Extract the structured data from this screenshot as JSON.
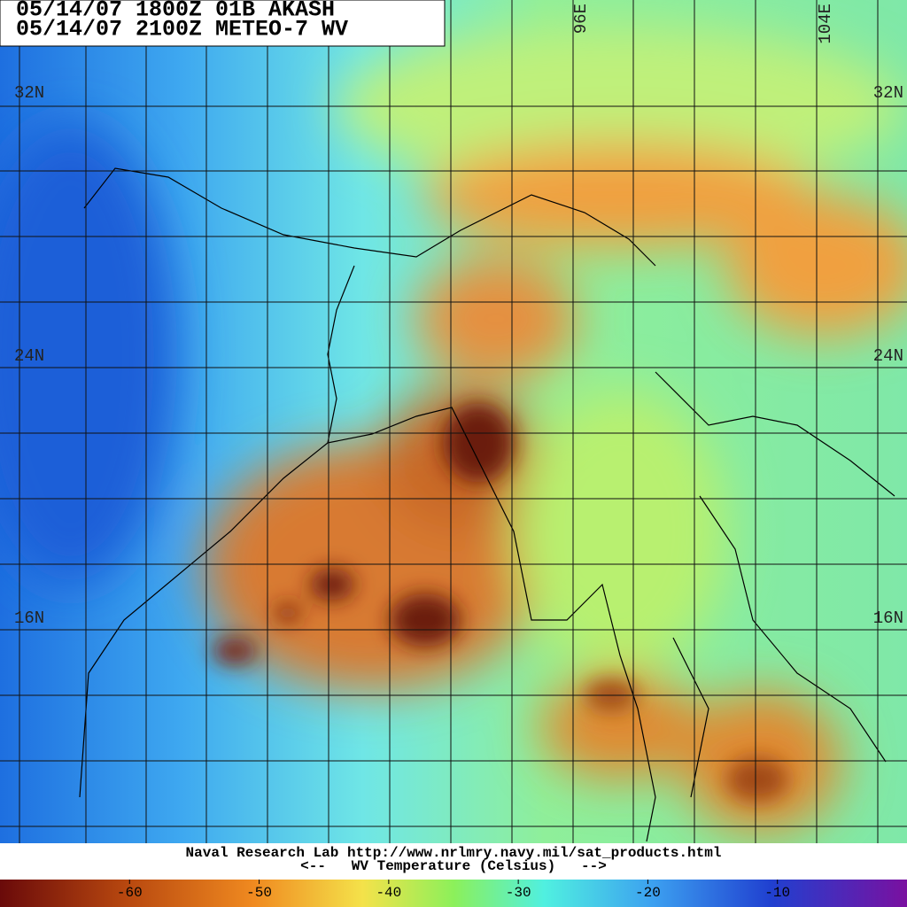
{
  "header": {
    "lines": [
      "05/14/07 1800Z  01B AKASH",
      "05/14/07 2100Z  METEO-7 WV"
    ]
  },
  "latitude_labels": [
    "32N",
    "24N",
    "16N"
  ],
  "longitude_labels": [
    "96E",
    "104E"
  ],
  "footer": {
    "credit": "Naval Research Lab http://www.nrlmry.navy.mil/sat_products.html",
    "scale_title": "<--   WV Temperature (Celsius)   -->"
  },
  "colorbar": {
    "lim": [
      -70,
      0
    ],
    "ticks": [
      -60,
      -50,
      -40,
      -30,
      -20,
      -10
    ]
  }
}
